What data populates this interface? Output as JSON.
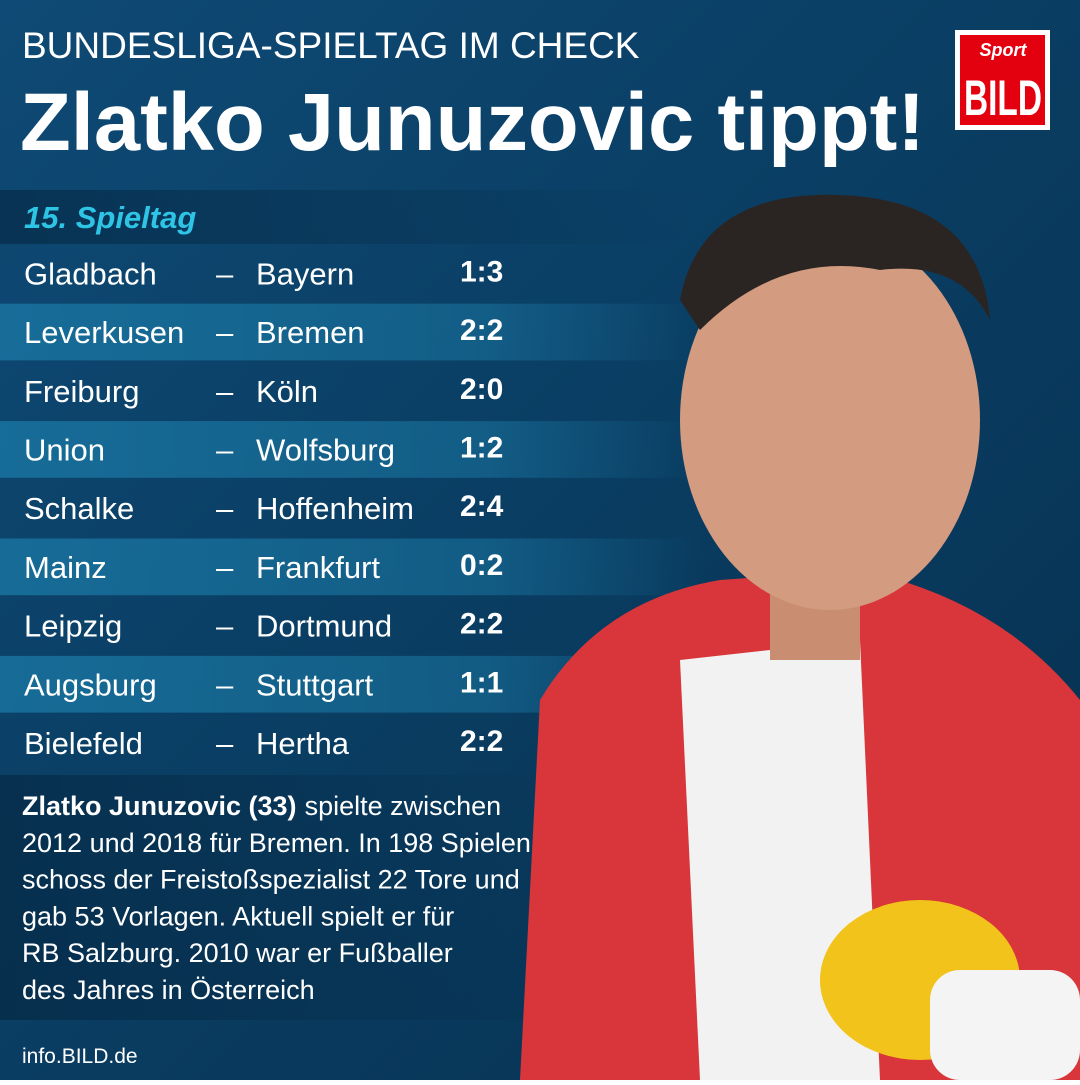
{
  "header": {
    "kicker": "BUNDESLIGA-SPIELTAG IM CHECK",
    "title": "Zlatko Junuzovic tippt!"
  },
  "logo": {
    "top": "Sport",
    "bottom": "BILD"
  },
  "matchday": "15. Spieltag",
  "separator": "–",
  "matches": [
    {
      "home": "Gladbach",
      "away": "Bayern",
      "score": "1:3"
    },
    {
      "home": "Leverkusen",
      "away": "Bremen",
      "score": "2:2"
    },
    {
      "home": "Freiburg",
      "away": "Köln",
      "score": "2:0"
    },
    {
      "home": "Union",
      "away": "Wolfsburg",
      "score": "1:2"
    },
    {
      "home": "Schalke",
      "away": "Hoffenheim",
      "score": "2:4"
    },
    {
      "home": "Mainz",
      "away": "Frankfurt",
      "score": "0:2"
    },
    {
      "home": "Leipzig",
      "away": "Dortmund",
      "score": "2:2"
    },
    {
      "home": "Augsburg",
      "away": "Stuttgart",
      "score": "1:1"
    },
    {
      "home": "Bielefeld",
      "away": "Hertha",
      "score": "2:2"
    }
  ],
  "bio": {
    "name": "Zlatko Junuzovic (33)",
    "lines": [
      "spielte zwischen",
      "2012 und 2018 für Bremen. In 198 Spielen",
      "schoss der Freistoßspezialist 22 Tore und",
      "gab 53 Vorlagen. Aktuell spielt er für",
      "RB Salzburg. 2010 war er Fußballer",
      "des Jahres in Österreich"
    ]
  },
  "footer": "info.BILD.de"
}
